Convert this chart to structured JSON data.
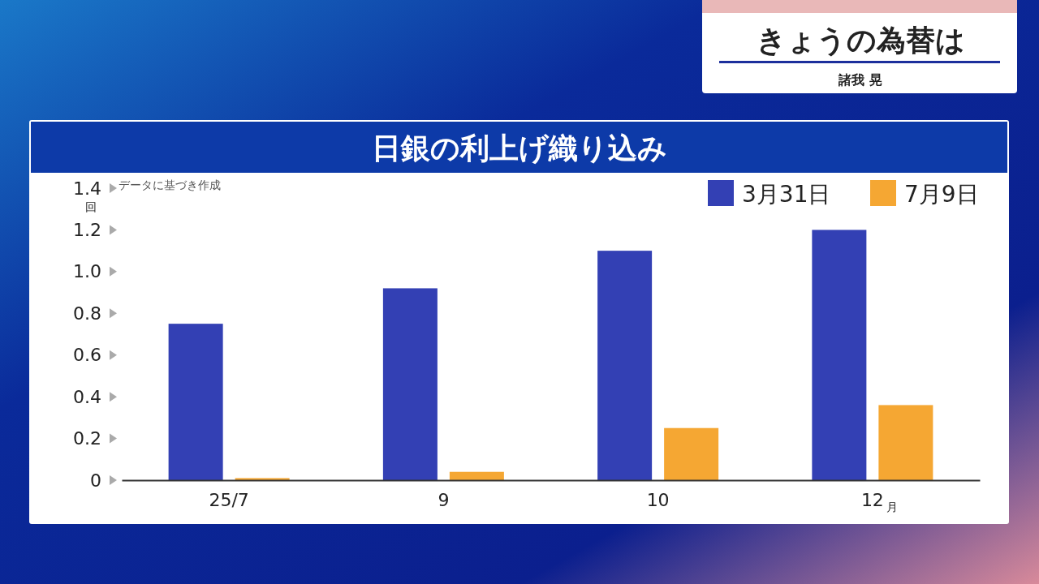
{
  "chart_data": {
    "type": "bar",
    "title": "日銀の利上げ織り込み",
    "ylabel": "回",
    "xlabel": "月",
    "categories": [
      "25/7",
      "9",
      "10",
      "12"
    ],
    "series": [
      {
        "name": "3月31日",
        "color": "#3340b4",
        "values": [
          0.75,
          0.92,
          1.1,
          1.2
        ]
      },
      {
        "name": "7月9日",
        "color": "#f5a733",
        "values": [
          0.01,
          0.04,
          0.25,
          0.36
        ]
      }
    ],
    "ylim": [
      0,
      1.4
    ],
    "yticks": [
      0,
      0.2,
      0.4,
      0.6,
      0.8,
      {
        "value": 1,
        "label": "1.0"
      },
      1.2,
      1.4
    ],
    "legend": "top right",
    "grid": false,
    "annotations": [
      "データに基づき作成",
      "きょうの為替は",
      "諸我 晃"
    ]
  }
}
